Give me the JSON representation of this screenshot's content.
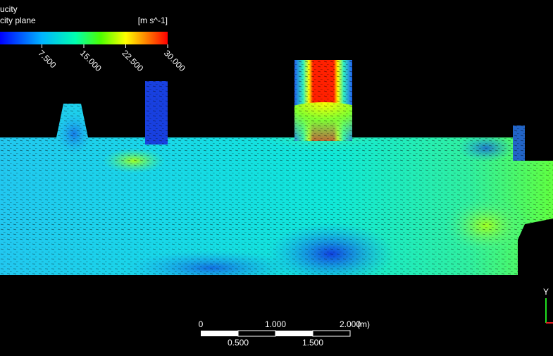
{
  "legend": {
    "title": "ucity",
    "subtitle": "city plane",
    "unit": "[m s^-1]",
    "ticks": [
      "7.500",
      "15.000",
      "22.500",
      "30.000"
    ]
  },
  "scale_bar": {
    "top_labels": [
      "0",
      "1.000",
      "2.000"
    ],
    "unit": "(m)",
    "bottom_labels": [
      "0.500",
      "1.500"
    ]
  },
  "axis_triad": {
    "label": "Y"
  }
}
